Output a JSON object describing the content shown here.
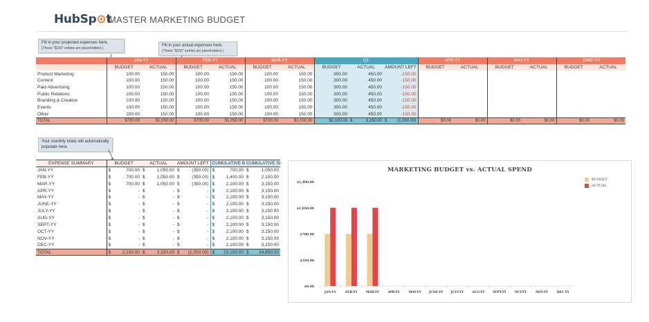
{
  "header": {
    "logo_text_a": "HubSp",
    "logo_text_b": "t",
    "title": "MASTER MARKETING BUDGET"
  },
  "notes": {
    "projected": {
      "main": "Fill in your projected expenses here.",
      "sub": "(Those \"$100\" entries are placeholders.)"
    },
    "actual": {
      "main": "Fill in your actual expenses here.",
      "sub": "(Those \"$150\" entries are placeholders.)"
    },
    "totals": {
      "main": "Your monthly totals will automatically populate here."
    }
  },
  "colors": {
    "accent_red": "#f07d63",
    "accent_blue": "#4aa8c0",
    "budget_bar": "#f2c98f",
    "actual_bar": "#e0454b",
    "negative": "#e23b2b"
  },
  "budget_table": {
    "months": [
      "JAN-YY",
      "FEB-YY",
      "MAR-YY",
      "Q1",
      "APR-YY",
      "MAY-YY",
      "JUNE-YY"
    ],
    "col_budget": "BUDGET",
    "col_actual": "ACTUAL",
    "col_amount_left": "AMOUNT LEFT",
    "rows": [
      {
        "label": "Product Marketing",
        "b": "100.00",
        "a": "150.00",
        "qb": "300.00",
        "qa": "450.00",
        "ql": "-150.00"
      },
      {
        "label": "Content",
        "b": "100.00",
        "a": "150.00",
        "qb": "300.00",
        "qa": "450.00",
        "ql": "-150.00"
      },
      {
        "label": "Paid Advertising",
        "b": "100.00",
        "a": "150.00",
        "qb": "300.00",
        "qa": "450.00",
        "ql": "-150.00"
      },
      {
        "label": "Public Relations",
        "b": "100.00",
        "a": "150.00",
        "qb": "300.00",
        "qa": "450.00",
        "ql": "-150.00"
      },
      {
        "label": "Branding & Creative",
        "b": "100.00",
        "a": "150.00",
        "qb": "300.00",
        "qa": "450.00",
        "ql": "-150.00"
      },
      {
        "label": "Events",
        "b": "100.00",
        "a": "150.00",
        "qb": "300.00",
        "qa": "450.00",
        "ql": "-150.00"
      },
      {
        "label": "Other",
        "b": "100.00",
        "a": "150.00",
        "qb": "300.00",
        "qa": "450.00",
        "ql": "-150.00"
      }
    ],
    "total": {
      "label": "TOTAL",
      "b": "$700.00",
      "a": "$1,050.00",
      "qb": "$2,100.00",
      "qa": "3,150.00",
      "qa_cur": "$",
      "ql": "(1,050.00)",
      "ql_cur": "$",
      "empty": "$0.00"
    }
  },
  "summary_table": {
    "headers": [
      "EXPENSE SUMMARY",
      "BUDGET",
      "ACTUAL",
      "AMOUNT LEFT",
      "CUMULATIVE BUDGET",
      "CUMULATIVE SPEND"
    ],
    "currency": "$",
    "rows": [
      {
        "month": "JAN-YY",
        "budget": "700.00",
        "actual": "1,050.00",
        "left": "(350.00)",
        "cum_budget": "700.00",
        "cum_spend": "1,050.00"
      },
      {
        "month": "FEB-YY",
        "budget": "700.00",
        "actual": "1,050.00",
        "left": "(350.00)",
        "cum_budget": "1,400.00",
        "cum_spend": "2,100.00"
      },
      {
        "month": "MAR-YY",
        "budget": "700.00",
        "actual": "1,050.00",
        "left": "(350.00)",
        "cum_budget": "2,100.00",
        "cum_spend": "3,150.00"
      },
      {
        "month": "APR-YY",
        "budget": "-",
        "actual": "-",
        "left": "-",
        "cum_budget": "2,100.00",
        "cum_spend": "3,150.00"
      },
      {
        "month": "MAY-YY",
        "budget": "-",
        "actual": "-",
        "left": "-",
        "cum_budget": "2,100.00",
        "cum_spend": "3,150.00"
      },
      {
        "month": "JUNE-YY",
        "budget": "-",
        "actual": "-",
        "left": "-",
        "cum_budget": "2,100.00",
        "cum_spend": "3,150.00"
      },
      {
        "month": "JULY-YY",
        "budget": "-",
        "actual": "-",
        "left": "-",
        "cum_budget": "2,100.00",
        "cum_spend": "3,150.00"
      },
      {
        "month": "AUG-YY",
        "budget": "-",
        "actual": "-",
        "left": "-",
        "cum_budget": "2,100.00",
        "cum_spend": "3,150.00"
      },
      {
        "month": "SEPT-YY",
        "budget": "-",
        "actual": "-",
        "left": "-",
        "cum_budget": "2,100.00",
        "cum_spend": "3,150.00"
      },
      {
        "month": "OCT-YY",
        "budget": "-",
        "actual": "-",
        "left": "-",
        "cum_budget": "2,100.00",
        "cum_spend": "3,150.00"
      },
      {
        "month": "NOV-YY",
        "budget": "-",
        "actual": "-",
        "left": "-",
        "cum_budget": "2,100.00",
        "cum_spend": "3,150.00"
      },
      {
        "month": "DEC-YY",
        "budget": "-",
        "actual": "-",
        "left": "-",
        "cum_budget": "2,100.00",
        "cum_spend": "3,150.00"
      }
    ],
    "total": {
      "label": "TOTAL",
      "budget": "2,100.00",
      "actual": "3,150.00",
      "left": "(1,050.00)",
      "cum_budget": "23,100.00",
      "cum_spend": "34,650.00"
    }
  },
  "chart_data": {
    "type": "bar",
    "title": "MARKETING BUDGET vs. ACTUAL SPEND",
    "categories": [
      "JAN-YY",
      "FEB-YY",
      "MAR-YY",
      "APR-YY",
      "MAY-YY",
      "JUNE-YY",
      "JULY-YY",
      "AUG-YY",
      "SEPT-YY",
      "OCT-YY",
      "NOV-YY",
      "DEC-YY"
    ],
    "series": [
      {
        "name": "BUDGET",
        "values": [
          700,
          700,
          700,
          0,
          0,
          0,
          0,
          0,
          0,
          0,
          0,
          0
        ],
        "color": "#f2c98f"
      },
      {
        "name": "ACTUAL",
        "values": [
          1050,
          1050,
          1050,
          0,
          0,
          0,
          0,
          0,
          0,
          0,
          0,
          0
        ],
        "color": "#e0454b"
      }
    ],
    "yticks": [
      0,
      350,
      700,
      1050,
      1400
    ],
    "ytick_labels": [
      "$0.00",
      "$350.00",
      "$700.00",
      "$1,050.00",
      "$1,400.00"
    ],
    "ylim": [
      0,
      1400
    ],
    "legend_position": "top-right",
    "grid": false
  }
}
